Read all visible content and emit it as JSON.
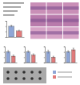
{
  "chart_data": [
    {
      "type": "bar",
      "categories": [
        null,
        null
      ],
      "values": [
        1.0,
        0.55
      ],
      "errors": [
        0.1,
        0.08
      ],
      "colors": [
        "#8fa6d6",
        "#e07b7b"
      ],
      "ylim": [
        0,
        1.5
      ],
      "yticks": [
        0,
        0.5,
        1,
        1.5
      ],
      "tick_labels": false
    },
    {
      "type": "bar",
      "categories": [
        null,
        null
      ],
      "values": [
        1.0,
        0.6
      ],
      "errors": [
        0.12,
        0.1
      ],
      "colors": [
        "#8fa6d6",
        "#e07b7b"
      ],
      "ylim": [
        0,
        1.5
      ],
      "yticks": [
        0,
        0.5,
        1,
        1.5
      ],
      "tick_labels": false
    },
    {
      "type": "bar",
      "categories": [
        null,
        null
      ],
      "values": [
        1.0,
        0.7
      ],
      "errors": [
        0.1,
        0.12
      ],
      "colors": [
        "#8fa6d6",
        "#e07b7b"
      ],
      "ylim": [
        0,
        1.5
      ],
      "yticks": [
        0,
        0.5,
        1,
        1.5
      ],
      "tick_labels": false
    },
    {
      "type": "bar",
      "categories": [
        null,
        null
      ],
      "values": [
        1.0,
        0.5
      ],
      "errors": [
        0.15,
        0.09
      ],
      "colors": [
        "#8fa6d6",
        "#e07b7b"
      ],
      "ylim": [
        0,
        1.5
      ],
      "yticks": [
        0,
        0.5,
        1,
        1.5
      ],
      "tick_labels": false
    },
    {
      "type": "bar",
      "categories": [
        null,
        null
      ],
      "values": [
        1.0,
        1.2
      ],
      "errors": [
        0.1,
        0.15
      ],
      "colors": [
        "#8fa6d6",
        "#e07b7b"
      ],
      "ylim": [
        0,
        1.5
      ],
      "yticks": [
        0,
        0.5,
        1,
        1.5
      ],
      "tick_labels": false
    }
  ]
}
